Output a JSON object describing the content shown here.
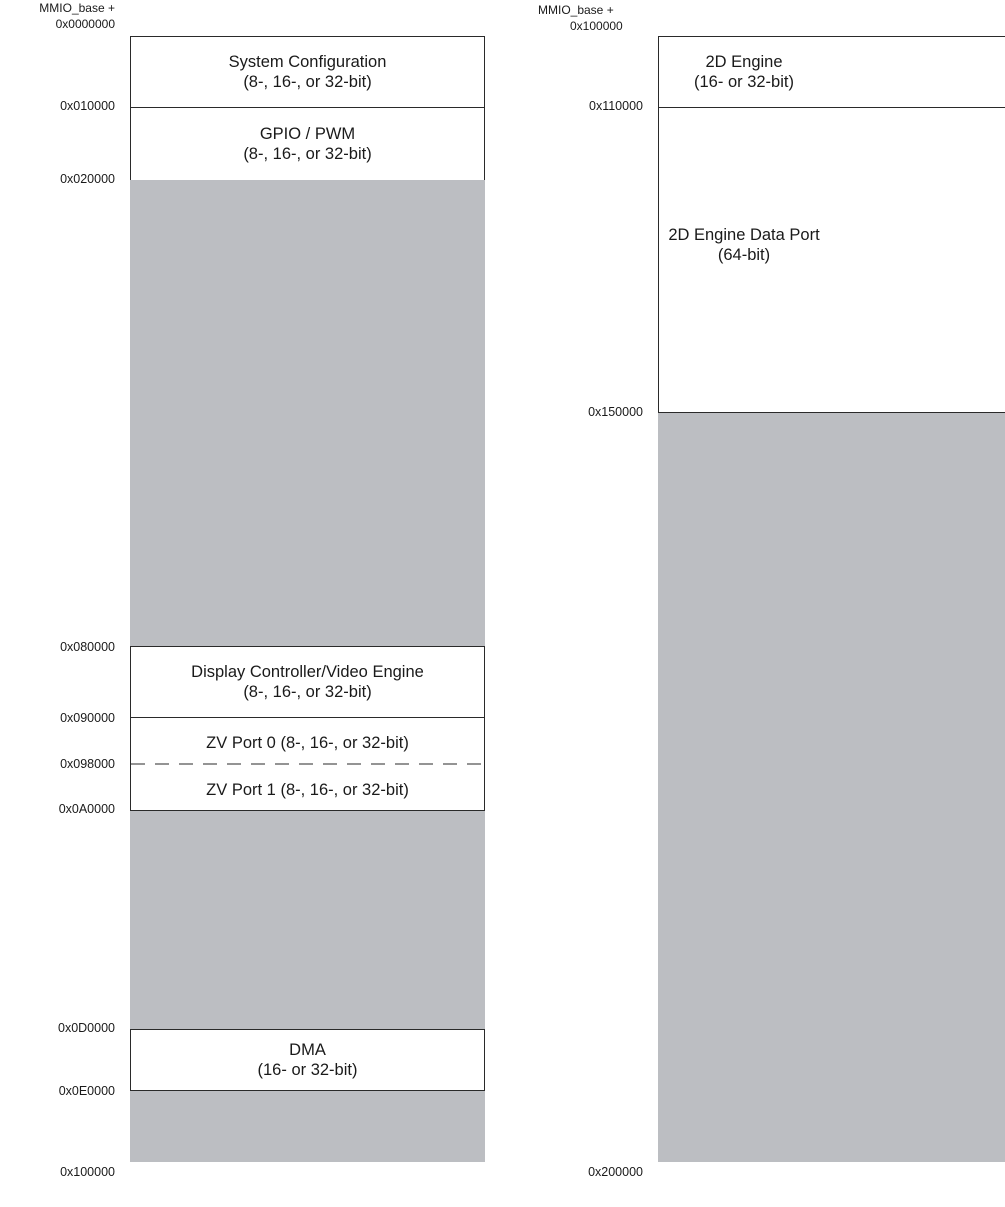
{
  "left_map": {
    "header_line1": "MMIO_base +",
    "header_line2": "0x0000000",
    "addresses": {
      "a010000": "0x010000",
      "a020000": "0x020000",
      "a080000": "0x080000",
      "a090000": "0x090000",
      "a098000": "0x098000",
      "a0A0000": "0x0A0000",
      "a0D0000": "0x0D0000",
      "a0E0000": "0x0E0000",
      "a100000": "0x100000"
    },
    "regions": {
      "system_config": {
        "line1": "System Configuration",
        "line2": "(8-, 16-, or 32-bit)"
      },
      "gpio_pwm": {
        "line1": "GPIO / PWM",
        "line2": "(8-, 16-, or 32-bit)"
      },
      "display": {
        "line1": "Display Controller/Video Engine",
        "line2": "(8-, 16-, or 32-bit)"
      },
      "zv0": {
        "line1": "ZV Port 0 (8-, 16-, or 32-bit)"
      },
      "zv1": {
        "line1": "ZV Port 1 (8-, 16-, or 32-bit)"
      },
      "dma": {
        "line1": "DMA",
        "line2": "(16- or 32-bit)"
      }
    }
  },
  "right_map": {
    "header_line1": "MMIO_base +",
    "header_line2": "0x100000",
    "addresses": {
      "a110000": "0x110000",
      "a150000": "0x150000",
      "a200000": "0x200000"
    },
    "regions": {
      "engine_2d": {
        "line1": "2D Engine",
        "line2": "(16- or 32-bit)"
      },
      "data_port": {
        "line1": "2D Engine Data Port",
        "line2": "(64-bit)"
      }
    }
  },
  "colors": {
    "reserved_fill": "#bcbec2",
    "border": "#2a2a2a",
    "used_fill": "#ffffff"
  }
}
